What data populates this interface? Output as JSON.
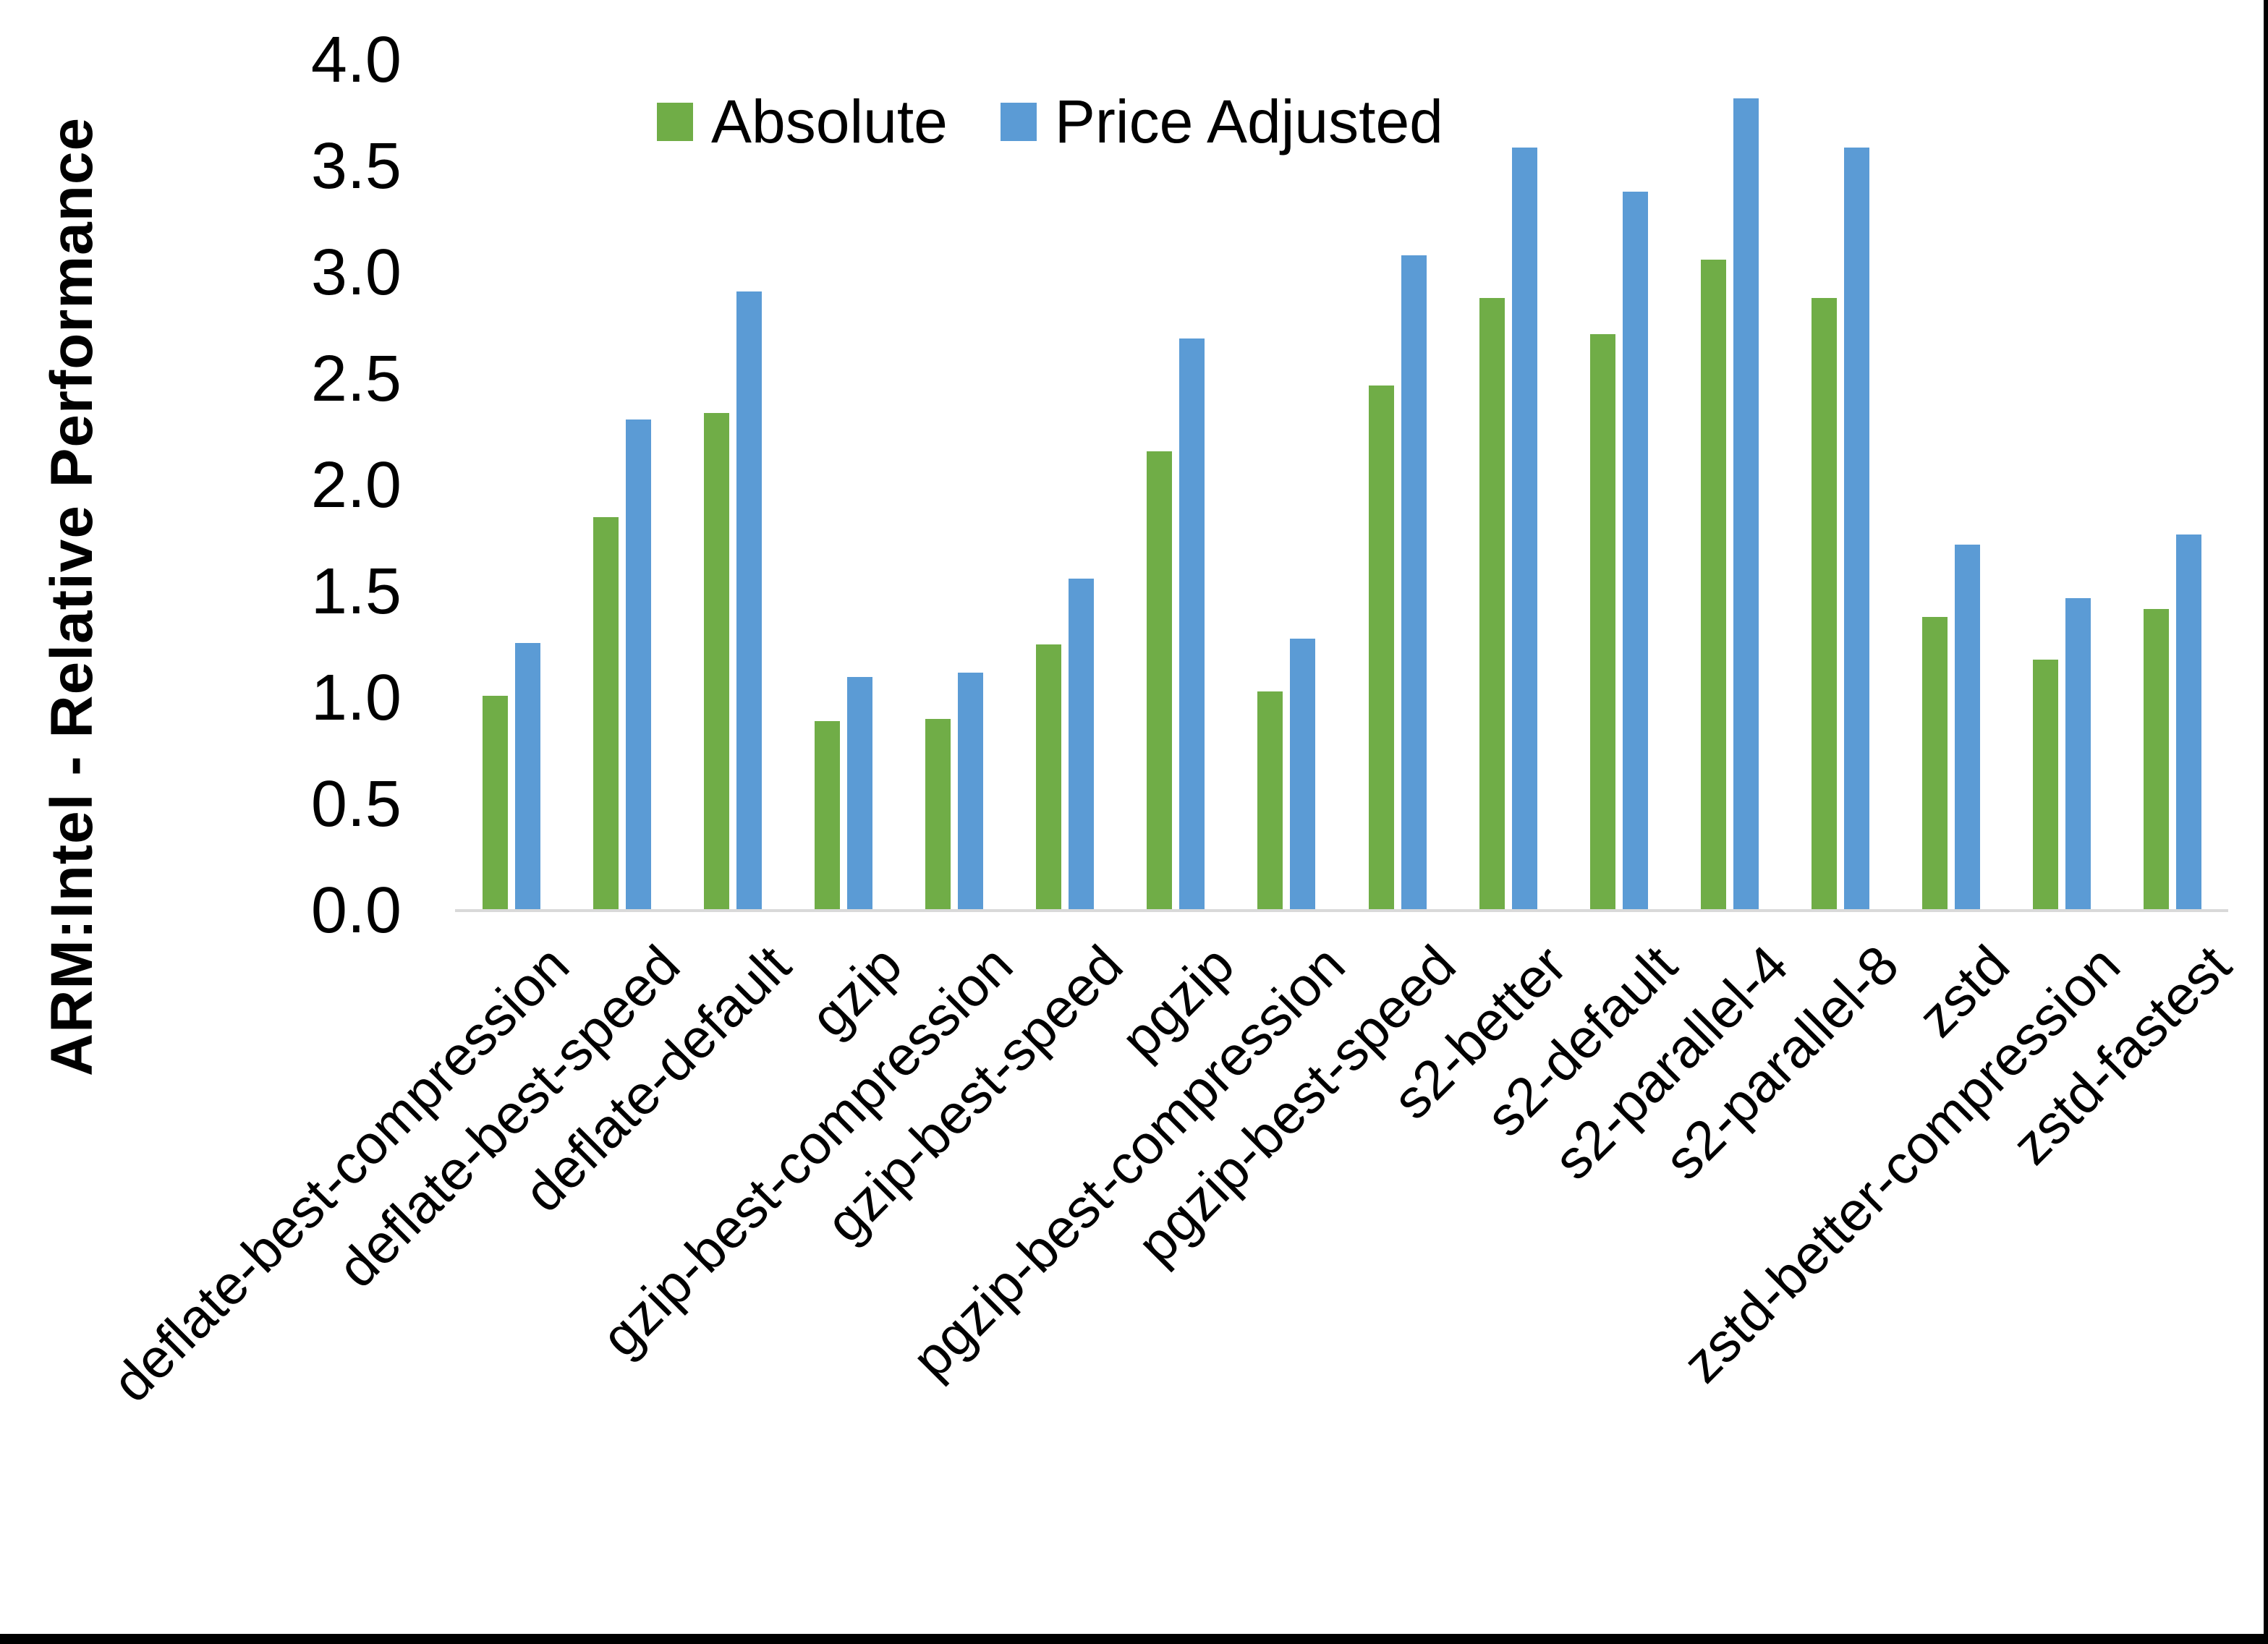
{
  "figure": {
    "background": "#ffffff",
    "border_bottom_color": "#000000",
    "border_right_color": "#000000"
  },
  "chart_data": {
    "type": "bar",
    "title": "",
    "xlabel": "",
    "ylabel": "ARM:Intel - Relative Performance",
    "ylim": [
      0.0,
      4.0
    ],
    "ytick_step": 0.5,
    "yticks": [
      "4.0",
      "3.5",
      "3.0",
      "2.5",
      "2.0",
      "1.5",
      "1.0",
      "0.5",
      "0.0"
    ],
    "grid": false,
    "legend_position": "top-center-inside",
    "axis_line_color": "#d9d9d9",
    "categories": [
      "deflate-best-compression",
      "deflate-best-speed",
      "deflate-default",
      "gzip",
      "gzip-best-compression",
      "gzip-best-speed",
      "pgzip",
      "pgzip-best-compression",
      "pgzip-best-speed",
      "s2-better",
      "s2-default",
      "s2-parallel-4",
      "s2-parallel-8",
      "zstd",
      "zstd-better-compression",
      "zstd-fastest"
    ],
    "series": [
      {
        "name": "Absolute",
        "color": "#70AD47",
        "values": [
          1.01,
          1.85,
          2.34,
          0.89,
          0.9,
          1.25,
          2.16,
          1.03,
          2.47,
          2.88,
          2.71,
          3.06,
          2.88,
          1.38,
          1.18,
          1.42
        ]
      },
      {
        "name": "Price Adjusted",
        "color": "#5B9BD5",
        "values": [
          1.26,
          2.31,
          2.91,
          1.1,
          1.12,
          1.56,
          2.69,
          1.28,
          3.08,
          3.59,
          3.38,
          3.82,
          3.59,
          1.72,
          1.47,
          1.77
        ]
      }
    ]
  }
}
